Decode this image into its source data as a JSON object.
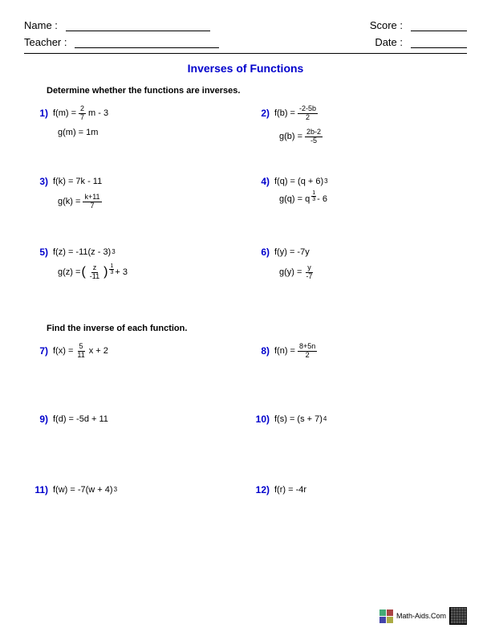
{
  "header": {
    "name_label": "Name :",
    "teacher_label": "Teacher :",
    "score_label": "Score :",
    "date_label": "Date :"
  },
  "title": "Inverses of Functions",
  "instruction1": "Determine whether the functions are inverses.",
  "instruction2": "Find the inverse of each function.",
  "problems1": [
    {
      "n": "1)",
      "f_lhs": "f(m) = ",
      "f_frac_top": "2",
      "f_frac_bot": "7",
      "f_rhs": " m - 3",
      "g": "g(m) = 1m"
    },
    {
      "n": "2)",
      "f_lhs": "f(b) = ",
      "f_frac_top": "-2-5b",
      "f_frac_bot": "2",
      "g_lhs": "g(b) = ",
      "g_frac_top": "2b-2",
      "g_frac_bot": "-5"
    },
    {
      "n": "3)",
      "f": "f(k) = 7k - 11",
      "g_lhs": "g(k) = ",
      "g_frac_top": "k+11",
      "g_frac_bot": "7"
    },
    {
      "n": "4)",
      "f_lhs": "f(q) = (q + 6)",
      "f_sup": "3",
      "g_lhs": "g(q) = q",
      "g_supfrac_top": "1",
      "g_supfrac_bot": "3",
      "g_rhs": " - 6"
    },
    {
      "n": "5)",
      "f_lhs": "f(z) = -11(z - 3)",
      "f_sup": "3",
      "g_lhs": "g(z) = ",
      "g_paren_open": "(",
      "g_frac_top": "z",
      "g_frac_bot": "-11",
      "g_paren_close": ")",
      "g_supfrac_top": "1",
      "g_supfrac_bot": "3",
      "g_rhs": " + 3"
    },
    {
      "n": "6)",
      "f": "f(y) = -7y",
      "g_lhs": "g(y) = ",
      "g_frac_top": "y",
      "g_frac_bot": "-7"
    }
  ],
  "problems2": [
    {
      "n": "7)",
      "f_lhs": "f(x) = ",
      "f_frac_top": "5",
      "f_frac_bot": "11",
      "f_rhs": " x + 2"
    },
    {
      "n": "8)",
      "f_lhs": "f(n) = ",
      "f_frac_top": "8+5n",
      "f_frac_bot": "2"
    },
    {
      "n": "9)",
      "f": "f(d) = -5d + 11"
    },
    {
      "n": "10)",
      "f_lhs": "f(s) = (s + 7)",
      "f_sup": "4"
    },
    {
      "n": "11)",
      "f_lhs": "f(w) = -7(w + 4)",
      "f_sup": "3"
    },
    {
      "n": "12)",
      "f": "f(r) = -4r"
    }
  ],
  "footer": {
    "site": "Math-Aids.Com"
  },
  "colors": {
    "accent": "#0000cc",
    "text": "#000000",
    "bg": "#ffffff"
  }
}
